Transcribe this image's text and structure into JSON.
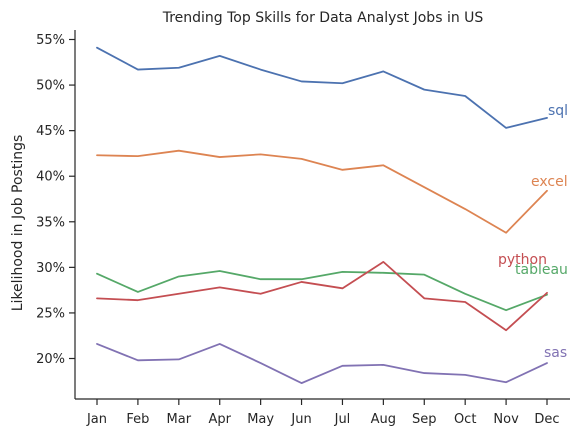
{
  "chart_data": {
    "type": "line",
    "title": "Trending Top Skills for Data Analyst Jobs in US",
    "xlabel": "",
    "ylabel": "Likelihood in Job Postings",
    "categories": [
      "Jan",
      "Feb",
      "Mar",
      "Apr",
      "May",
      "Jun",
      "Jul",
      "Aug",
      "Sep",
      "Oct",
      "Nov",
      "Dec"
    ],
    "ylim": [
      15.2,
      56.5
    ],
    "yticks": [
      20,
      25,
      30,
      35,
      40,
      45,
      50,
      55
    ],
    "ytick_labels": [
      "20%",
      "25%",
      "30%",
      "35%",
      "40%",
      "45%",
      "50%",
      "55%"
    ],
    "grid": false,
    "legend": "none",
    "series": [
      {
        "name": "sql",
        "color": "#4c72b0",
        "values": [
          54.1,
          51.7,
          51.9,
          53.2,
          51.7,
          50.4,
          50.2,
          51.5,
          49.5,
          48.8,
          45.3,
          46.4
        ]
      },
      {
        "name": "excel",
        "color": "#dd8452",
        "values": [
          42.3,
          42.2,
          42.8,
          42.1,
          42.4,
          41.9,
          40.7,
          41.2,
          38.8,
          36.4,
          33.8,
          38.4
        ]
      },
      {
        "name": "tableau",
        "color": "#55a868",
        "values": [
          29.3,
          27.3,
          29.0,
          29.6,
          28.7,
          28.7,
          29.5,
          29.4,
          29.2,
          27.1,
          25.3,
          27.0
        ]
      },
      {
        "name": "python",
        "color": "#c44e52",
        "values": [
          26.6,
          26.4,
          27.1,
          27.8,
          27.1,
          28.4,
          27.7,
          30.6,
          26.6,
          26.2,
          23.1,
          27.2
        ]
      },
      {
        "name": "sas",
        "color": "#8172b3",
        "values": [
          21.6,
          19.8,
          19.9,
          21.6,
          19.5,
          17.3,
          19.2,
          19.3,
          18.4,
          18.2,
          17.4,
          19.5
        ]
      }
    ]
  }
}
